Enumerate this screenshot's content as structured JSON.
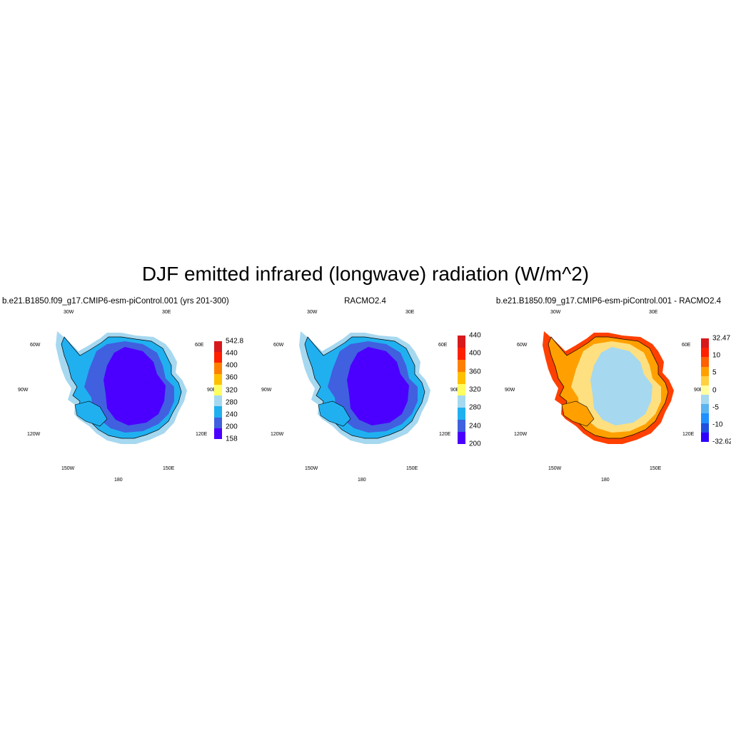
{
  "title": "DJF emitted infrared (longwave) radiation (W/m^2)",
  "longitude_labels": [
    "30W",
    "30E",
    "60W",
    "60E",
    "90W",
    "90E",
    "120W",
    "120E",
    "150W",
    "150E",
    "180"
  ],
  "panels": [
    {
      "id": "model",
      "title": "b.e21.B1850.f09_g17.CMIP6-esm-piControl.001 (yrs 201-300)",
      "colorbar": {
        "labels": [
          "542.8",
          "440",
          "400",
          "360",
          "320",
          "280",
          "240",
          "200",
          "158"
        ],
        "colors": [
          "#d7191c",
          "#ff2000",
          "#ff8000",
          "#ffc000",
          "#ffff60",
          "#a6d8f0",
          "#20b0f0",
          "#4060e0",
          "#4b00ff"
        ]
      },
      "fills": {
        "outer": "#a6d8f0",
        "coast": "#20b0f0",
        "inner": "#4060e0",
        "core": "#4b00ff"
      }
    },
    {
      "id": "racmo",
      "title": "RACMO2.4",
      "colorbar": {
        "labels": [
          "440",
          "400",
          "360",
          "320",
          "280",
          "240",
          "200"
        ],
        "colors": [
          "#d7191c",
          "#ff2000",
          "#ff8000",
          "#ffc000",
          "#ffff60",
          "#a6d8f0",
          "#20b0f0",
          "#4060e0",
          "#4b00ff"
        ]
      },
      "fills": {
        "outer": "#a6d8f0",
        "coast": "#20b0f0",
        "inner": "#4060e0",
        "core": "#4b00ff"
      }
    },
    {
      "id": "difference",
      "title": "b.e21.B1850.f09_g17.CMIP6-esm-piControl.001 - RACMO2.4",
      "colorbar": {
        "labels": [
          "32.47",
          "10",
          "5",
          "0",
          "-5",
          "-10",
          "-32.62"
        ],
        "colors": [
          "#d7191c",
          "#ff2000",
          "#ff6000",
          "#ffa000",
          "#ffd040",
          "#ffffa0",
          "#a6d8f0",
          "#5ab4f0",
          "#1e90ff",
          "#2050e0",
          "#3000ff"
        ]
      },
      "fills": {
        "outer": "#ff4000",
        "coast": "#ffa000",
        "inner": "#ffe080",
        "core": "#a6d8f0"
      }
    }
  ]
}
